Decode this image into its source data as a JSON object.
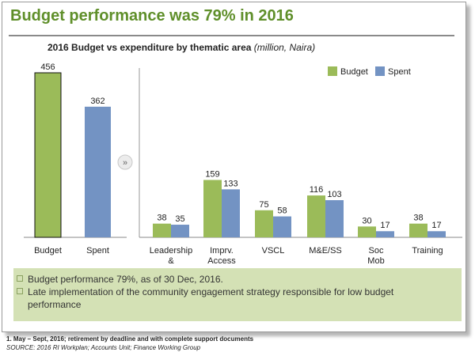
{
  "header": {
    "title": "Budget performance was 79% in 2016",
    "subtitle_main": "2016 Budget vs expenditure by thematic area",
    "subtitle_unit": "(million, Naira)"
  },
  "colors": {
    "budget": "#9bbb59",
    "spent": "#7393c3"
  },
  "chart_data": [
    {
      "type": "bar",
      "categories": [
        "Budget",
        "Spent"
      ],
      "values": [
        456,
        362
      ],
      "series_colors": [
        "#9bbb59",
        "#7393c3"
      ]
    },
    {
      "type": "bar",
      "categories": [
        "Leadership &",
        "Imprv. Access",
        "VSCL",
        "M&E/SS",
        "Soc Mob",
        "Training"
      ],
      "series": [
        {
          "name": "Budget",
          "values": [
            38,
            159,
            75,
            116,
            30,
            38
          ]
        },
        {
          "name": "Spent",
          "values": [
            35,
            133,
            58,
            103,
            17,
            17
          ]
        }
      ],
      "legend": "top-right"
    }
  ],
  "notes": [
    "Budget performance 79%, as of 30 Dec, 2016.",
    "Late implementation of the community engagement strategy responsible for low budget performance"
  ],
  "footnote": "1. May – Sept, 2016; retirement by deadline and with complete support documents",
  "source": "SOURCE: 2016 RI Workplan; Accounts Unit; Finance Working Group"
}
